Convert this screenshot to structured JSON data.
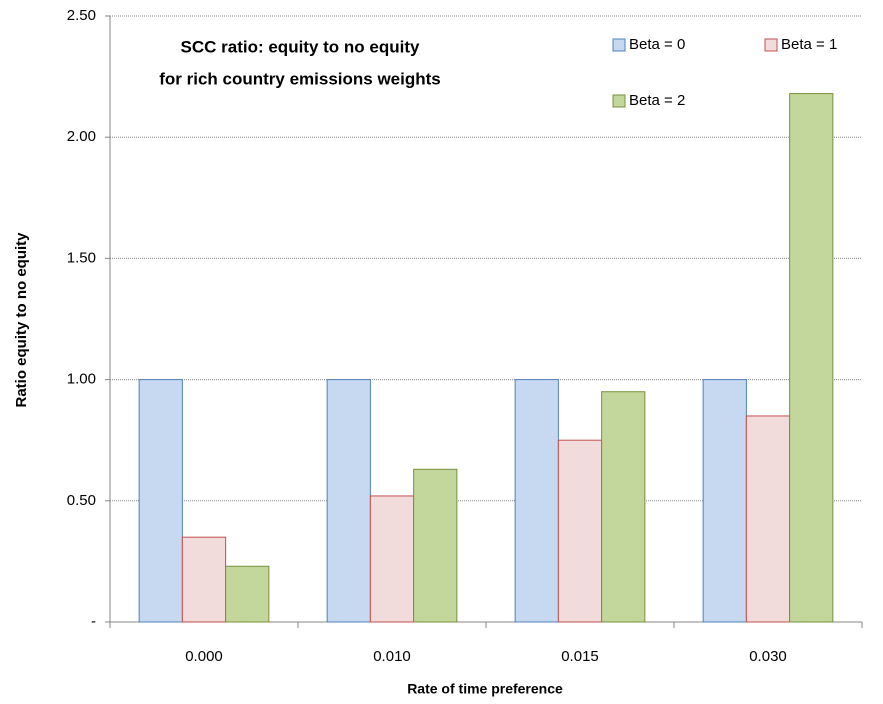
{
  "chart_data": {
    "type": "bar",
    "title": [
      "SCC ratio: equity to no equity",
      "for rich country emissions weights"
    ],
    "x_label": "Rate of time preference",
    "y_label": "Ratio equity to no equity",
    "categories": [
      "0.000",
      "0.010",
      "0.015",
      "0.030"
    ],
    "series": [
      {
        "name": "Beta = 0",
        "color": "#c6d9f1",
        "edge_color": "#4f81bd",
        "values": [
          1.0,
          1.0,
          1.0,
          1.0
        ]
      },
      {
        "name": "Beta = 1",
        "color": "#f2dcdb",
        "edge_color": "#c0504d",
        "values": [
          0.35,
          0.52,
          0.75,
          0.85
        ]
      },
      {
        "name": "Beta = 2",
        "color": "#c3d69b",
        "edge_color": "#77933c",
        "values": [
          0.23,
          0.63,
          0.95,
          2.18
        ]
      }
    ],
    "ylim": [
      0,
      2.5
    ],
    "yticks": [
      {
        "value": 0,
        "label": "-"
      },
      {
        "value": 0.5,
        "label": "0.50"
      },
      {
        "value": 1,
        "label": "1.00"
      },
      {
        "value": 1.5,
        "label": "1.50"
      },
      {
        "value": 2,
        "label": "2.00"
      },
      {
        "value": 2.5,
        "label": "2.50"
      }
    ],
    "grid": true,
    "legend": "top-right"
  }
}
